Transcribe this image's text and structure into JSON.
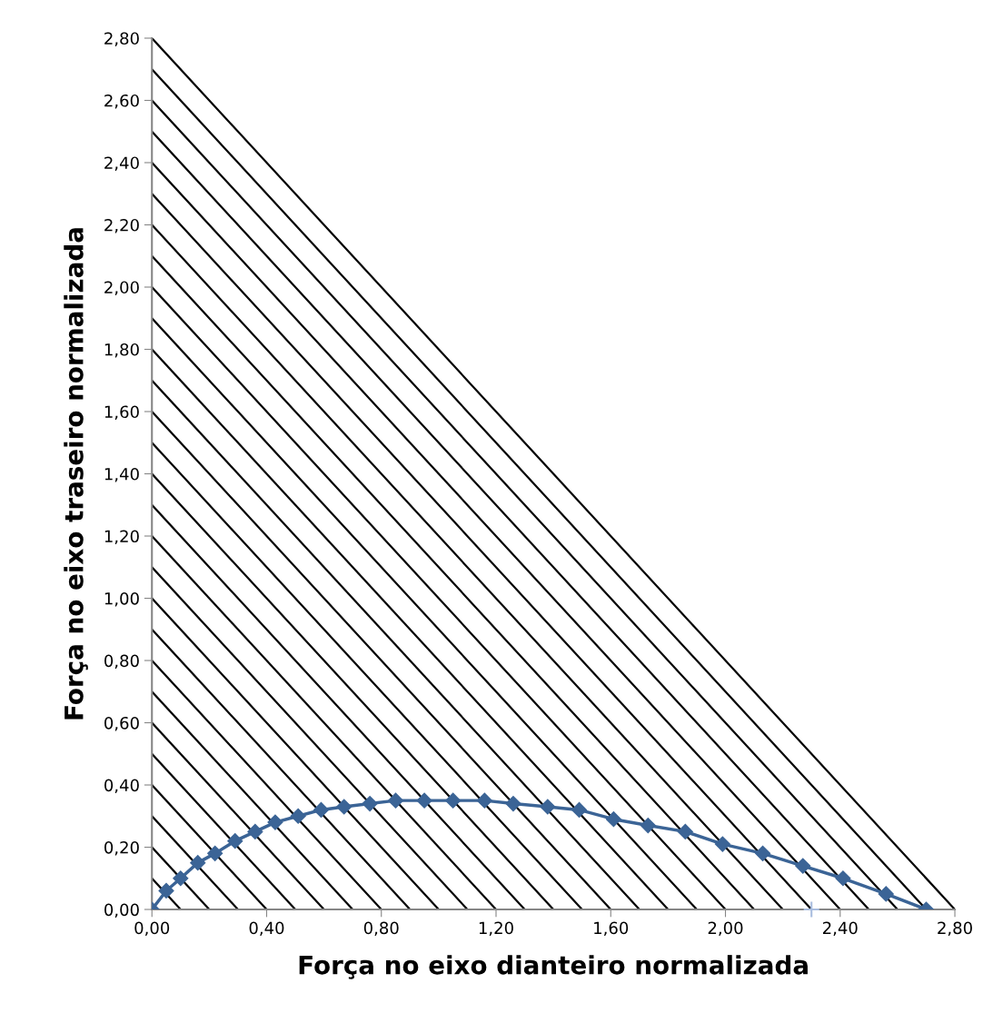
{
  "chart_data": {
    "type": "line",
    "xlabel": "Força no eixo dianteiro normalizada",
    "ylabel": "Força no eixo traseiro normalizada",
    "xlim": [
      0,
      2.8
    ],
    "ylim": [
      0,
      2.8
    ],
    "xticks": [
      {
        "value": 0,
        "label": "0,00"
      },
      {
        "value": 0.4,
        "label": "0,40"
      },
      {
        "value": 0.8,
        "label": "0,80"
      },
      {
        "value": 1.2,
        "label": "1,20"
      },
      {
        "value": 1.6,
        "label": "1,60"
      },
      {
        "value": 2.0,
        "label": "2,00"
      },
      {
        "value": 2.4,
        "label": "2,40"
      },
      {
        "value": 2.8,
        "label": "2,80"
      }
    ],
    "yticks": [
      {
        "value": 0,
        "label": "0,00"
      },
      {
        "value": 0.2,
        "label": "0,20"
      },
      {
        "value": 0.4,
        "label": "0,40"
      },
      {
        "value": 0.6,
        "label": "0,60"
      },
      {
        "value": 0.8,
        "label": "0,80"
      },
      {
        "value": 1.0,
        "label": "1,00"
      },
      {
        "value": 1.2,
        "label": "1,20"
      },
      {
        "value": 1.4,
        "label": "1,40"
      },
      {
        "value": 1.6,
        "label": "1,60"
      },
      {
        "value": 1.8,
        "label": "1,80"
      },
      {
        "value": 2.0,
        "label": "2,00"
      },
      {
        "value": 2.2,
        "label": "2,20"
      },
      {
        "value": 2.4,
        "label": "2,40"
      },
      {
        "value": 2.6,
        "label": "2,60"
      },
      {
        "value": 2.8,
        "label": "2,80"
      }
    ],
    "grid": false,
    "series": [
      {
        "color": "#000000",
        "marker": "none",
        "x": [
          0,
          0.1
        ],
        "values": [
          0.1,
          0
        ]
      },
      {
        "color": "#000000",
        "marker": "none",
        "x": [
          0,
          0.2
        ],
        "values": [
          0.2,
          0
        ]
      },
      {
        "color": "#000000",
        "marker": "none",
        "x": [
          0,
          0.3
        ],
        "values": [
          0.3,
          0
        ]
      },
      {
        "color": "#000000",
        "marker": "none",
        "x": [
          0,
          0.4
        ],
        "values": [
          0.4,
          0
        ]
      },
      {
        "color": "#000000",
        "marker": "none",
        "x": [
          0,
          0.5
        ],
        "values": [
          0.5,
          0
        ]
      },
      {
        "color": "#000000",
        "marker": "none",
        "x": [
          0,
          0.6
        ],
        "values": [
          0.6,
          0
        ]
      },
      {
        "color": "#000000",
        "marker": "none",
        "x": [
          0,
          0.7
        ],
        "values": [
          0.7,
          0
        ]
      },
      {
        "color": "#000000",
        "marker": "none",
        "x": [
          0,
          0.8
        ],
        "values": [
          0.8,
          0
        ]
      },
      {
        "color": "#000000",
        "marker": "none",
        "x": [
          0,
          0.9
        ],
        "values": [
          0.9,
          0
        ]
      },
      {
        "color": "#000000",
        "marker": "none",
        "x": [
          0,
          1.0
        ],
        "values": [
          1.0,
          0
        ]
      },
      {
        "color": "#000000",
        "marker": "none",
        "x": [
          0,
          1.1
        ],
        "values": [
          1.1,
          0
        ]
      },
      {
        "color": "#000000",
        "marker": "none",
        "x": [
          0,
          1.2
        ],
        "values": [
          1.2,
          0
        ]
      },
      {
        "color": "#000000",
        "marker": "none",
        "x": [
          0,
          1.3
        ],
        "values": [
          1.3,
          0
        ]
      },
      {
        "color": "#000000",
        "marker": "none",
        "x": [
          0,
          1.4
        ],
        "values": [
          1.4,
          0
        ]
      },
      {
        "color": "#000000",
        "marker": "none",
        "x": [
          0,
          1.5
        ],
        "values": [
          1.5,
          0
        ]
      },
      {
        "color": "#000000",
        "marker": "none",
        "x": [
          0,
          1.6
        ],
        "values": [
          1.6,
          0
        ]
      },
      {
        "color": "#000000",
        "marker": "none",
        "x": [
          0,
          1.7
        ],
        "values": [
          1.7,
          0
        ]
      },
      {
        "color": "#000000",
        "marker": "none",
        "x": [
          0,
          1.8
        ],
        "values": [
          1.8,
          0
        ]
      },
      {
        "color": "#000000",
        "marker": "none",
        "x": [
          0,
          1.9
        ],
        "values": [
          1.9,
          0
        ]
      },
      {
        "color": "#000000",
        "marker": "none",
        "x": [
          0,
          2.0
        ],
        "values": [
          2.0,
          0
        ]
      },
      {
        "color": "#000000",
        "marker": "none",
        "x": [
          0,
          2.1
        ],
        "values": [
          2.1,
          0
        ]
      },
      {
        "color": "#000000",
        "marker": "none",
        "x": [
          0,
          2.2
        ],
        "values": [
          2.2,
          0
        ]
      },
      {
        "color": "#000000",
        "marker": "none",
        "x": [
          0,
          2.3
        ],
        "values": [
          2.3,
          0
        ]
      },
      {
        "color": "#000000",
        "marker": "none",
        "x": [
          0,
          2.4
        ],
        "values": [
          2.4,
          0
        ]
      },
      {
        "color": "#000000",
        "marker": "none",
        "x": [
          0,
          2.5
        ],
        "values": [
          2.5,
          0
        ]
      },
      {
        "color": "#000000",
        "marker": "none",
        "x": [
          0,
          2.6
        ],
        "values": [
          2.6,
          0
        ]
      },
      {
        "color": "#000000",
        "marker": "none",
        "x": [
          0,
          2.7
        ],
        "values": [
          2.7,
          0
        ]
      },
      {
        "color": "#000000",
        "marker": "none",
        "x": [
          0,
          2.8
        ],
        "values": [
          2.8,
          0
        ]
      },
      {
        "color": "#3b6496",
        "marker": "diamond",
        "x": [
          0,
          0.05,
          0.1,
          0.16,
          0.22,
          0.29,
          0.36,
          0.43,
          0.51,
          0.59,
          0.67,
          0.76,
          0.85,
          0.95,
          1.05,
          1.16,
          1.26,
          1.38,
          1.49,
          1.61,
          1.73,
          1.86,
          1.99,
          2.13,
          2.27,
          2.41,
          2.56,
          2.7
        ],
        "values": [
          0,
          0.06,
          0.1,
          0.15,
          0.18,
          0.22,
          0.25,
          0.28,
          0.3,
          0.32,
          0.33,
          0.34,
          0.35,
          0.35,
          0.35,
          0.35,
          0.34,
          0.33,
          0.32,
          0.29,
          0.27,
          0.25,
          0.21,
          0.18,
          0.14,
          0.1,
          0.05,
          0
        ]
      },
      {
        "type": "scatter",
        "color": "#a9bddf",
        "marker": "cross",
        "x": [
          2.3
        ],
        "values": [
          0
        ]
      }
    ]
  }
}
